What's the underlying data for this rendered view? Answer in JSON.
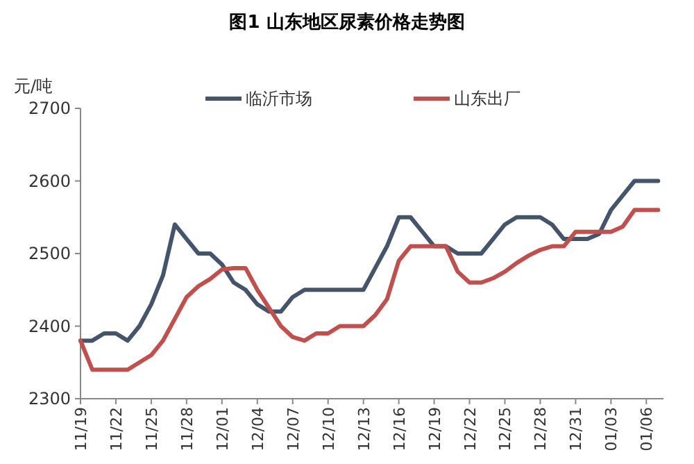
{
  "chart_data": {
    "type": "line",
    "title": "图1 山东地区尿素价格走势图",
    "ylabel": "元/吨",
    "categories": [
      "11/19",
      null,
      null,
      "11/22",
      null,
      null,
      "11/25",
      null,
      null,
      "11/28",
      null,
      null,
      "12/01",
      null,
      null,
      "12/04",
      null,
      null,
      "12/07",
      null,
      null,
      "12/10",
      null,
      null,
      "12/13",
      null,
      null,
      "12/16",
      null,
      null,
      "12/19",
      null,
      null,
      "12/22",
      null,
      null,
      "12/25",
      null,
      null,
      "12/28",
      null,
      null,
      "12/31",
      null,
      null,
      "01/03",
      null,
      null,
      "01/06",
      null
    ],
    "series": [
      {
        "name": "临沂市场",
        "color": "#44546a",
        "values": [
          2380,
          2380,
          2390,
          2390,
          2380,
          2400,
          2430,
          2470,
          2540,
          2520,
          2500,
          2500,
          2485,
          2460,
          2450,
          2430,
          2420,
          2420,
          2440,
          2450,
          2450,
          2450,
          2450,
          2450,
          2450,
          2480,
          2510,
          2550,
          2550,
          2530,
          2510,
          2510,
          2500,
          2500,
          2500,
          2520,
          2540,
          2550,
          2550,
          2550,
          2540,
          2520,
          2520,
          2520,
          2527,
          2560,
          2580,
          2600,
          2600,
          2600
        ]
      },
      {
        "name": "山东出厂",
        "color": "#c0504d",
        "values": [
          2380,
          2340,
          2340,
          2340,
          2340,
          2350,
          2360,
          2380,
          2410,
          2440,
          2455,
          2465,
          2478,
          2480,
          2480,
          2450,
          2425,
          2400,
          2385,
          2380,
          2390,
          2390,
          2400,
          2400,
          2400,
          2415,
          2437,
          2490,
          2510,
          2510,
          2510,
          2510,
          2475,
          2460,
          2460,
          2466,
          2475,
          2487,
          2497,
          2505,
          2510,
          2510,
          2530,
          2530,
          2530,
          2530,
          2537,
          2560,
          2560,
          2560
        ]
      }
    ],
    "ylim": [
      2300,
      2700
    ],
    "yticks": [
      2300,
      2400,
      2500,
      2600,
      2700
    ],
    "grid": false,
    "legend": "top",
    "marker": "none",
    "line_style": "solid"
  }
}
